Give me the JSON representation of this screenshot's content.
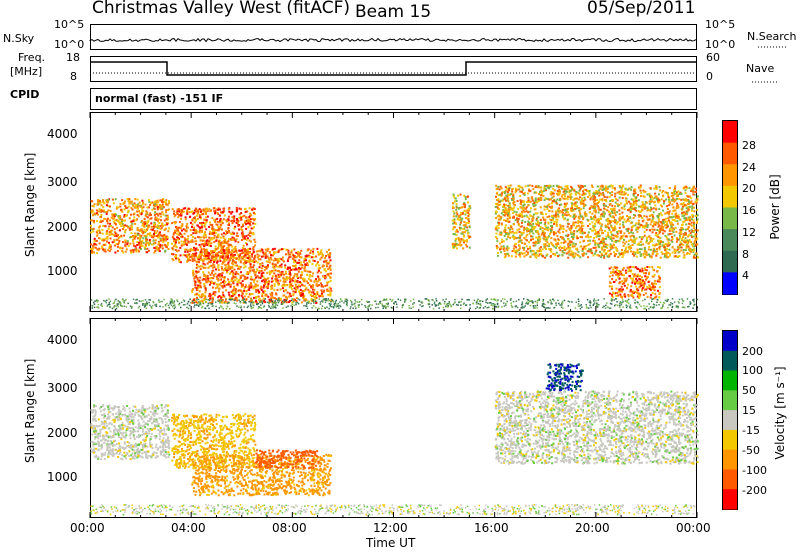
{
  "header": {
    "title": "Christmas Valley West (fitACF)",
    "beam": "Beam 15",
    "date": "05/Sep/2011"
  },
  "top_panels": {
    "nsky_label": "N.Sky",
    "nsearch_label": "N.Search",
    "noise_left_ticks": [
      "10^5",
      "10^0"
    ],
    "noise_right_ticks": [
      "10^5",
      "10^0"
    ],
    "freq_label_1": "Freq.",
    "freq_label_2": "[MHz]",
    "freq_ticks": [
      "18",
      "8"
    ],
    "nave_label": "Nave",
    "nave_ticks": [
      "60",
      "0"
    ],
    "cpid_label": "CPID",
    "cpid_text": "normal (fast) -151 IF"
  },
  "chart_data": [
    {
      "type": "heatmap",
      "name": "power-panel",
      "ylabel": "Slant Range [km]",
      "yticks": [
        "4000",
        "3000",
        "2000",
        "1000"
      ],
      "ylim": [
        180,
        4600
      ],
      "colorbar_label": "Power [dB]",
      "colorbar_ticks": [
        "28",
        "24",
        "20",
        "16",
        "12",
        "8",
        "4"
      ],
      "colorbar_colors": [
        "#ff0000",
        "#ff5a00",
        "#ff9600",
        "#f2c800",
        "#78b848",
        "#4a8a5a",
        "#2e6a52",
        "#0000ff"
      ],
      "scatter_regions": [
        {
          "x0": 0.0,
          "x1": 3.1,
          "y0": 1500,
          "y1": 2700,
          "power": 22
        },
        {
          "x0": 3.2,
          "x1": 6.5,
          "y0": 1300,
          "y1": 2500,
          "power": 24
        },
        {
          "x0": 4.0,
          "x1": 9.5,
          "y0": 400,
          "y1": 1600,
          "power": 24
        },
        {
          "x0": 14.3,
          "x1": 15.0,
          "y0": 1600,
          "y1": 2800,
          "power": 20
        },
        {
          "x0": 16.0,
          "x1": 24.0,
          "y0": 1400,
          "y1": 3000,
          "power": 20
        },
        {
          "x0": 20.5,
          "x1": 22.5,
          "y0": 500,
          "y1": 1200,
          "power": 24
        }
      ]
    },
    {
      "type": "heatmap",
      "name": "velocity-panel",
      "xlabel": "Time UT",
      "xticks": [
        "00:00",
        "04:00",
        "08:00",
        "12:00",
        "16:00",
        "20:00",
        "00:00"
      ],
      "ylabel": "Slant Range [km]",
      "yticks": [
        "4000",
        "3000",
        "2000",
        "1000"
      ],
      "ylim": [
        180,
        4600
      ],
      "colorbar_label": "Velocity [m s⁻¹]",
      "colorbar_ticks": [
        "200",
        "100",
        "50",
        "15",
        "-15",
        "-50",
        "-100",
        "-200"
      ],
      "colorbar_colors": [
        "#0000c8",
        "#005a5a",
        "#00b400",
        "#66cc44",
        "#c8c8c0",
        "#f2c800",
        "#ff9600",
        "#ff5a00",
        "#ff0000"
      ],
      "scatter_regions": [
        {
          "x0": 0.0,
          "x1": 3.1,
          "y0": 1500,
          "y1": 2700,
          "velocity": 0
        },
        {
          "x0": 3.2,
          "x1": 6.5,
          "y0": 1300,
          "y1": 2500,
          "velocity": -40
        },
        {
          "x0": 4.0,
          "x1": 9.5,
          "y0": 700,
          "y1": 1600,
          "velocity": -60
        },
        {
          "x0": 6.5,
          "x1": 9.0,
          "y0": 1300,
          "y1": 1700,
          "velocity": -180
        },
        {
          "x0": 16.0,
          "x1": 24.0,
          "y0": 1400,
          "y1": 3000,
          "velocity": 0
        },
        {
          "x0": 18.0,
          "x1": 19.5,
          "y0": 3000,
          "y1": 3600,
          "velocity": 200
        }
      ]
    }
  ]
}
